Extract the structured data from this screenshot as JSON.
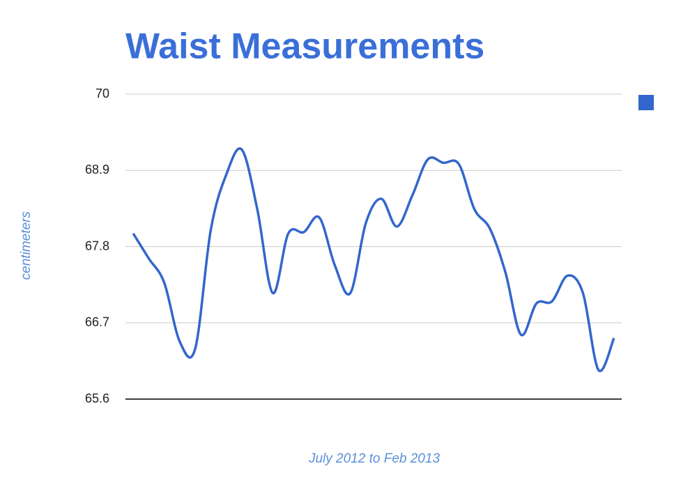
{
  "chart_data": {
    "type": "line",
    "title": "Waist Measurements",
    "x_label": "July 2012 to Feb 2013",
    "y_label": "centimeters",
    "categories": [
      null,
      null,
      null,
      null,
      null,
      null,
      null,
      null,
      null,
      null,
      null,
      null,
      null,
      null,
      null,
      null,
      null,
      null,
      null,
      null,
      null,
      null,
      null,
      null,
      null,
      null,
      null,
      null,
      null,
      null,
      null,
      null
    ],
    "series": [
      {
        "color": "#3366cc",
        "values": [
          67.99,
          67.63,
          67.28,
          66.43,
          66.33,
          68.04,
          68.84,
          69.2,
          68.34,
          67.13,
          67.99,
          68.01,
          68.22,
          67.53,
          67.13,
          68.14,
          68.49,
          68.09,
          68.54,
          69.06,
          69.01,
          68.99,
          68.34,
          68.06,
          67.43,
          66.53,
          66.98,
          67.01,
          67.38,
          67.13,
          66.02,
          66.48
        ]
      }
    ],
    "ylim": [
      65.6,
      70
    ],
    "yticks": [
      65.6,
      66.7,
      67.8,
      68.9,
      70
    ],
    "grid": true,
    "smooth": true
  }
}
